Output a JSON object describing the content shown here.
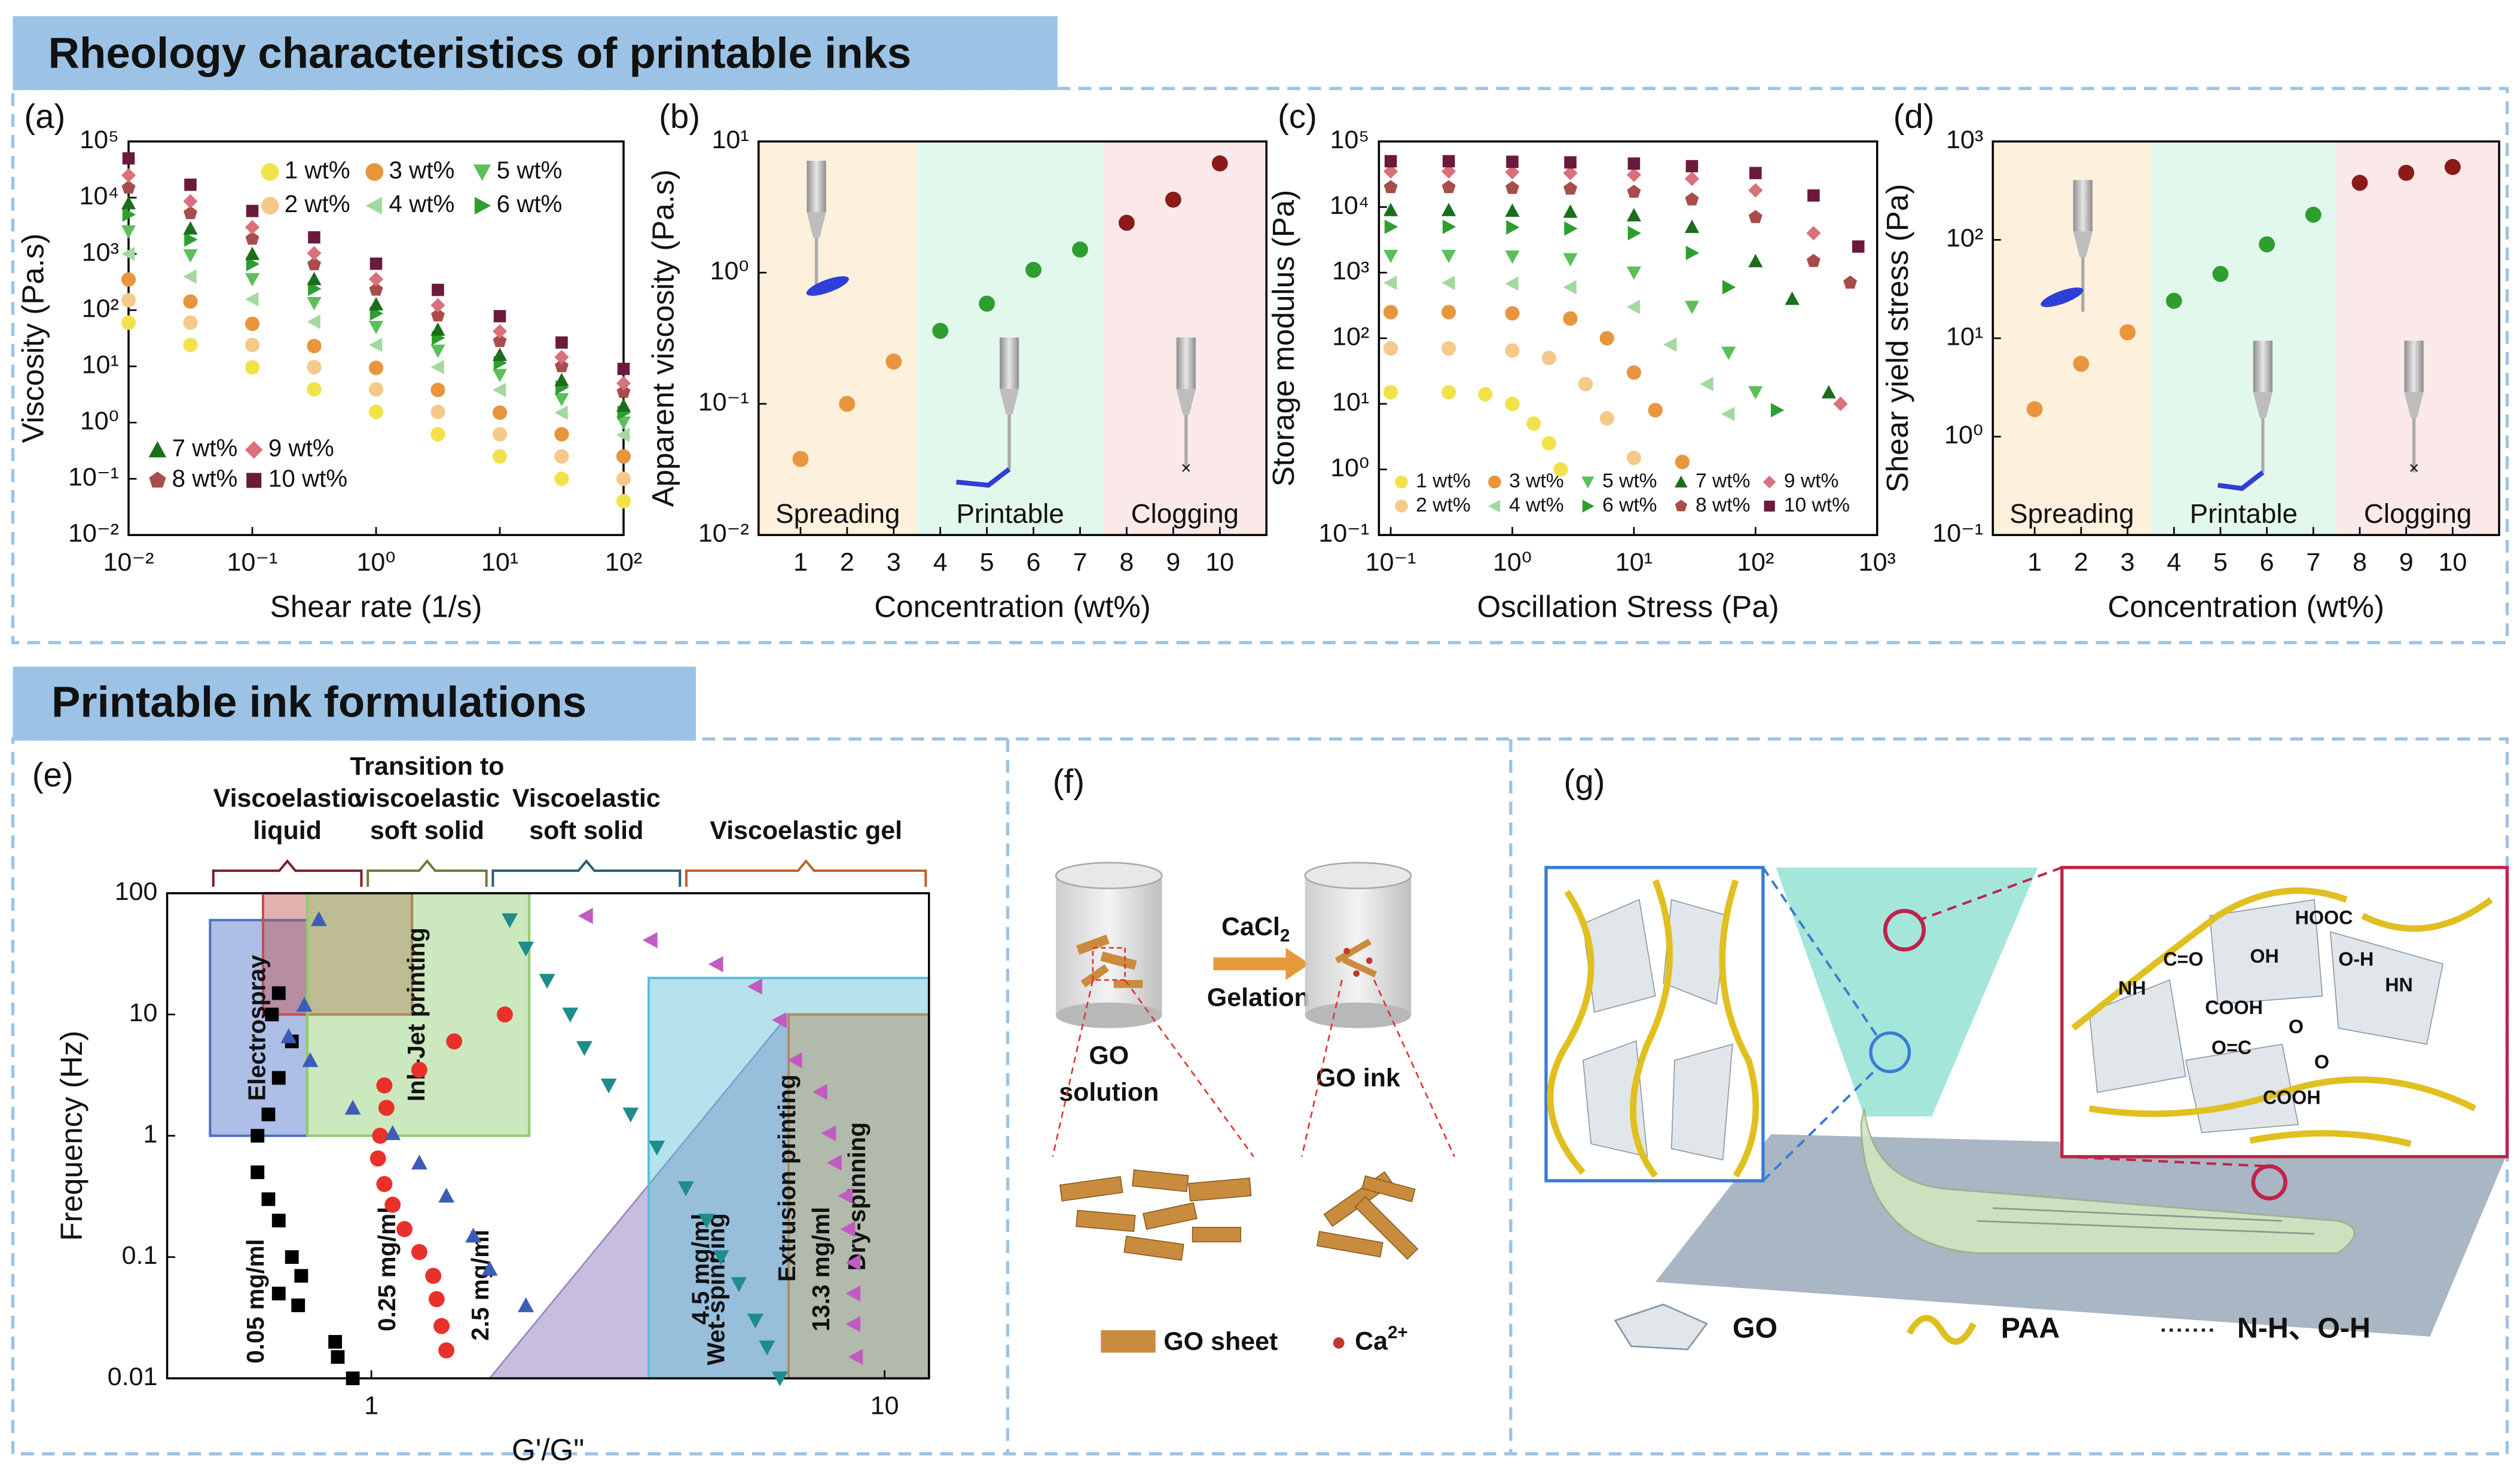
{
  "headers": [
    "Rheology characteristics of printable inks",
    "Printable ink formulations"
  ],
  "chart_data": [
    {
      "type": "scatter",
      "label": "(a)",
      "xlabel": "Shear rate (1/s)",
      "ylabel": "Viscosity (Pa.s)",
      "xlog": true,
      "ylog": true,
      "legend": true,
      "xlim": [
        0.01,
        100
      ],
      "ylim": [
        0.01,
        100000
      ],
      "xticks": [
        {
          "value": 0.01,
          "label": "10⁻²"
        },
        {
          "value": 0.1,
          "label": "10⁻¹"
        },
        {
          "value": 1,
          "label": "10⁰"
        },
        {
          "value": 10,
          "label": "10¹"
        },
        {
          "value": 100,
          "label": "10²"
        }
      ],
      "yticks": [
        {
          "value": 0.01,
          "label": "10⁻²"
        },
        {
          "value": 0.1,
          "label": "10⁻¹"
        },
        {
          "value": 1,
          "label": "10⁰"
        },
        {
          "value": 10,
          "label": "10¹"
        },
        {
          "value": 100,
          "label": "10²"
        },
        {
          "value": 1000,
          "label": "10³"
        },
        {
          "value": 10000,
          "label": "10⁴"
        },
        {
          "value": 100000,
          "label": "10⁵"
        }
      ],
      "x": [
        0.01,
        0.0316,
        0.1,
        0.316,
        1,
        3.16,
        10,
        31.6,
        100
      ],
      "series": [
        {
          "name": "1 wt%",
          "color": "#f2e24a",
          "marker": "circle",
          "values": [
            60,
            24,
            9.6,
            3.9,
            1.55,
            0.62,
            0.25,
            0.1,
            0.04
          ]
        },
        {
          "name": "2 wt%",
          "color": "#f5c98a",
          "marker": "circle",
          "values": [
            150,
            60,
            24,
            9.7,
            3.9,
            1.55,
            0.62,
            0.25,
            0.1
          ]
        },
        {
          "name": "3 wt%",
          "color": "#e8953e",
          "marker": "circle",
          "values": [
            350,
            142,
            57,
            23,
            9.4,
            3.8,
            1.5,
            0.62,
            0.25
          ]
        },
        {
          "name": "4 wt%",
          "color": "#a3d9a0",
          "marker": "tri-left",
          "values": [
            1000,
            395,
            156,
            62,
            24,
            9.7,
            3.8,
            1.5,
            0.6
          ]
        },
        {
          "name": "5 wt%",
          "color": "#5cbf5a",
          "marker": "tri-down",
          "values": [
            2500,
            940,
            353,
            133,
            50,
            19,
            7,
            2.6,
            1
          ]
        },
        {
          "name": "6 wt%",
          "color": "#2e9e2e",
          "marker": "tri-right",
          "values": [
            5000,
            1800,
            660,
            240,
            87,
            32,
            11.5,
            4.2,
            1.5
          ]
        },
        {
          "name": "7 wt%",
          "color": "#1b6e1b",
          "marker": "tri-up",
          "values": [
            8000,
            2840,
            1000,
            357,
            127,
            45,
            16,
            5.7,
            2
          ]
        },
        {
          "name": "8 wt%",
          "color": "#a84c4c",
          "marker": "pentagon",
          "values": [
            15000,
            5270,
            1850,
            650,
            230,
            80,
            28,
            10,
            3.5
          ]
        },
        {
          "name": "9 wt%",
          "color": "#d9707a",
          "marker": "diamond",
          "values": [
            25000,
            8630,
            2980,
            1030,
            355,
            122,
            42,
            14.6,
            5
          ]
        },
        {
          "name": "10 wt%",
          "color": "#6b1a3c",
          "marker": "square",
          "values": [
            50000,
            17000,
            5800,
            1970,
            670,
            229,
            78,
            26.5,
            9
          ]
        }
      ]
    },
    {
      "type": "scatter",
      "label": "(b)",
      "xlabel": "Concentration (wt%)",
      "ylabel": "Apparent viscosity (Pa.s)",
      "xlog": false,
      "ylog": true,
      "xlim": [
        0.1,
        11
      ],
      "ylim": [
        0.01,
        10
      ],
      "xticks": [
        1,
        2,
        3,
        4,
        5,
        6,
        7,
        8,
        9,
        10
      ],
      "yticks": [
        {
          "value": 0.01,
          "label": "10⁻²"
        },
        {
          "value": 0.1,
          "label": "10⁻¹"
        },
        {
          "value": 1,
          "label": "10⁰"
        },
        {
          "value": 10,
          "label": "10¹"
        }
      ],
      "regions": [
        {
          "label": "Spreading",
          "x0": 0.1,
          "x1": 3.5,
          "color": "#fdf0dc"
        },
        {
          "label": "Printable",
          "x0": 3.5,
          "x1": 7.5,
          "color": "#e3f8ec"
        },
        {
          "label": "Clogging",
          "x0": 7.5,
          "x1": 11,
          "color": "#fbe8e8"
        }
      ],
      "x": [
        1,
        2,
        3,
        4,
        5,
        6,
        7,
        8,
        9,
        10
      ],
      "values": [
        0.038,
        0.1,
        0.21,
        0.36,
        0.58,
        1.05,
        1.5,
        2.4,
        3.6,
        6.8
      ],
      "point_colors": [
        "#e8953e",
        "#e8953e",
        "#e8953e",
        "#2e9e2e",
        "#2e9e2e",
        "#2e9e2e",
        "#2e9e2e",
        "#8b1a1a",
        "#8b1a1a",
        "#8b1a1a"
      ]
    },
    {
      "type": "scatter",
      "label": "(c)",
      "xlabel": "Oscillation Stress (Pa)",
      "ylabel": "Storage modulus (Pa)",
      "xlog": true,
      "ylog": true,
      "legend": true,
      "xlim": [
        0.08,
        1000
      ],
      "ylim": [
        0.1,
        100000
      ],
      "xticks": [
        {
          "value": 0.1,
          "label": "10⁻¹"
        },
        {
          "value": 1,
          "label": "10⁰"
        },
        {
          "value": 10,
          "label": "10¹"
        },
        {
          "value": 100,
          "label": "10²"
        },
        {
          "value": 1000,
          "label": "10³"
        }
      ],
      "yticks": [
        {
          "value": 0.1,
          "label": "10⁻¹"
        },
        {
          "value": 1,
          "label": "10⁰"
        },
        {
          "value": 10,
          "label": "10¹"
        },
        {
          "value": 100,
          "label": "10²"
        },
        {
          "value": 1000,
          "label": "10³"
        },
        {
          "value": 10000,
          "label": "10⁴"
        },
        {
          "value": 100000,
          "label": "10⁵"
        }
      ],
      "series": [
        {
          "name": "1 wt%",
          "color": "#f2e24a",
          "marker": "circle",
          "x": [
            0.1,
            0.3,
            0.6,
            1,
            1.5,
            2,
            2.5
          ],
          "values": [
            15,
            15,
            14,
            10,
            5,
            2.5,
            1
          ]
        },
        {
          "name": "2 wt%",
          "color": "#f5c98a",
          "marker": "circle",
          "x": [
            0.1,
            0.3,
            1,
            2,
            4,
            6,
            10
          ],
          "values": [
            70,
            70,
            65,
            50,
            20,
            6,
            1.5
          ]
        },
        {
          "name": "3 wt%",
          "color": "#e8953e",
          "marker": "circle",
          "x": [
            0.1,
            0.3,
            1,
            3,
            6,
            10,
            15,
            25
          ],
          "values": [
            250,
            250,
            240,
            200,
            100,
            30,
            8,
            1.3
          ]
        },
        {
          "name": "4 wt%",
          "color": "#a3d9a0",
          "marker": "tri-left",
          "x": [
            0.1,
            0.3,
            1,
            3,
            10,
            20,
            40,
            60
          ],
          "values": [
            700,
            700,
            680,
            600,
            300,
            80,
            20,
            7
          ]
        },
        {
          "name": "5 wt%",
          "color": "#5cbf5a",
          "marker": "tri-down",
          "x": [
            0.1,
            0.3,
            1,
            3,
            10,
            30,
            60,
            100
          ],
          "values": [
            1800,
            1800,
            1750,
            1600,
            1000,
            300,
            60,
            15
          ]
        },
        {
          "name": "6 wt%",
          "color": "#2e9e2e",
          "marker": "tri-right",
          "x": [
            0.1,
            0.3,
            1,
            3,
            10,
            30,
            60,
            150
          ],
          "values": [
            5000,
            5000,
            4900,
            4700,
            4000,
            2000,
            600,
            8
          ]
        },
        {
          "name": "7 wt%",
          "color": "#1b6e1b",
          "marker": "tri-up",
          "x": [
            0.1,
            0.3,
            1,
            3,
            10,
            30,
            100,
            200,
            400
          ],
          "values": [
            9000,
            9000,
            8800,
            8500,
            7500,
            5000,
            1500,
            400,
            15
          ]
        },
        {
          "name": "8 wt%",
          "color": "#a84c4c",
          "marker": "pentagon",
          "x": [
            0.1,
            0.3,
            1,
            3,
            10,
            30,
            100,
            300,
            600
          ],
          "values": [
            20000,
            20000,
            19500,
            19000,
            17000,
            13000,
            7000,
            1500,
            700
          ]
        },
        {
          "name": "9 wt%",
          "color": "#d9707a",
          "marker": "diamond",
          "x": [
            0.1,
            0.3,
            1,
            3,
            10,
            30,
            100,
            300,
            500
          ],
          "values": [
            35000,
            35000,
            34000,
            33000,
            31000,
            27000,
            18000,
            4000,
            10
          ]
        },
        {
          "name": "10 wt%",
          "color": "#6b1a3c",
          "marker": "square",
          "x": [
            0.1,
            0.3,
            1,
            3,
            10,
            30,
            100,
            300,
            700
          ],
          "values": [
            50000,
            50000,
            49000,
            48000,
            46000,
            42000,
            33000,
            15000,
            2500
          ]
        }
      ]
    },
    {
      "type": "scatter",
      "label": "(d)",
      "xlabel": "Concentration (wt%)",
      "ylabel": "Shear yield stress (Pa)",
      "xlog": false,
      "ylog": true,
      "xlim": [
        0.1,
        11
      ],
      "ylim": [
        0.1,
        1000
      ],
      "xticks": [
        1,
        2,
        3,
        4,
        5,
        6,
        7,
        8,
        9,
        10
      ],
      "yticks": [
        {
          "value": 0.1,
          "label": "10⁻¹"
        },
        {
          "value": 1,
          "label": "10⁰"
        },
        {
          "value": 10,
          "label": "10¹"
        },
        {
          "value": 100,
          "label": "10²"
        },
        {
          "value": 1000,
          "label": "10³"
        }
      ],
      "regions": [
        {
          "label": "Spreading",
          "x0": 0.1,
          "x1": 3.5,
          "color": "#fdf0dc"
        },
        {
          "label": "Printable",
          "x0": 3.5,
          "x1": 7.5,
          "color": "#e3f8ec"
        },
        {
          "label": "Clogging",
          "x0": 7.5,
          "x1": 11,
          "color": "#fbe8e8"
        }
      ],
      "x": [
        1,
        2,
        3,
        4,
        5,
        6,
        7,
        8,
        9,
        10
      ],
      "values": [
        1.9,
        5.5,
        11.5,
        24,
        45,
        90,
        180,
        380,
        480,
        550
      ],
      "point_colors": [
        "#e8953e",
        "#e8953e",
        "#e8953e",
        "#2e9e2e",
        "#2e9e2e",
        "#2e9e2e",
        "#2e9e2e",
        "#8b1a1a",
        "#8b1a1a",
        "#8b1a1a"
      ]
    },
    {
      "type": "scatter",
      "label": "(e)",
      "xlabel": "G'/G\"",
      "ylabel": "Frequency (Hz)",
      "xlog": true,
      "ylog": true,
      "xlim": [
        0.4,
        12.2
      ],
      "ylim": [
        0.01,
        100
      ],
      "xticks": [
        1,
        10
      ],
      "yticks": [
        0.01,
        0.1,
        1,
        10,
        100
      ],
      "phases": [
        {
          "lines": [
            "Viscoelastic",
            "liquid"
          ],
          "x0": 0.485,
          "x1": 0.97,
          "color": "#7a1f2b"
        },
        {
          "lines": [
            "Transition to",
            "viscoelastic",
            "soft solid"
          ],
          "x0": 0.97,
          "x1": 1.7,
          "color": "#76763a"
        },
        {
          "lines": [
            "Viscoelastic",
            "soft solid"
          ],
          "x0": 1.7,
          "x1": 4.05,
          "color": "#2b5c77"
        },
        {
          "lines": [
            "Viscoelastic gel"
          ],
          "x0": 4.05,
          "x1": 12.2,
          "color": "#c0602a"
        }
      ],
      "regions": [
        {
          "label": "Wet-spinning",
          "points": [
            [
              1.7,
              0.01
            ],
            [
              6.5,
              10
            ],
            [
              6.5,
              0.01
            ]
          ],
          "color": "#9a86c4"
        },
        {
          "label": "Electrospray",
          "x0": 0.485,
          "x1": 0.75,
          "y0": 1,
          "y1": 60,
          "color": "#4a70c8"
        },
        {
          "x0": 0.615,
          "x1": 1.2,
          "y0": 10,
          "y1": 100,
          "color": "#c0504d"
        },
        {
          "label": "Ink-Jet printing",
          "x0": 0.75,
          "x1": 2.03,
          "y0": 1,
          "y1": 100,
          "color": "#8fcc6e"
        },
        {
          "label": "Extrusion printing",
          "x0": 3.47,
          "x1": 12.2,
          "y0": 0.01,
          "y1": 20,
          "color": "#5bbfd8"
        },
        {
          "label": "Dry-spinning",
          "x0": 6.5,
          "x1": 12.2,
          "y0": 0.01,
          "y1": 10,
          "color": "#b08b5a"
        }
      ],
      "series": [
        {
          "name": "0.05 mg/ml",
          "color": "#000000",
          "marker": "square",
          "x": [
            0.66,
            0.64,
            0.7,
            0.66,
            0.63,
            0.6,
            0.6,
            0.63,
            0.66,
            0.7,
            0.73,
            0.66,
            0.72,
            0.85,
            0.86,
            0.92
          ],
          "values": [
            15,
            10,
            6,
            3,
            1.5,
            1,
            0.5,
            0.3,
            0.2,
            0.1,
            0.07,
            0.05,
            0.04,
            0.02,
            0.015,
            0.01
          ]
        },
        {
          "name": "0.25 mg/ml",
          "color": "#e8312a",
          "marker": "circle",
          "x": [
            1.82,
            1.45,
            1.24,
            1.06,
            1.07,
            1.04,
            1.03,
            1.06,
            1.1,
            1.16,
            1.24,
            1.32,
            1.34,
            1.37,
            1.4
          ],
          "values": [
            10,
            6,
            3.5,
            2.6,
            1.7,
            1,
            0.65,
            0.4,
            0.27,
            0.17,
            0.11,
            0.07,
            0.045,
            0.027,
            0.017
          ]
        },
        {
          "name": "2.5 mg/ml",
          "color": "#3d5cb8",
          "marker": "tri-up",
          "x": [
            0.79,
            0.74,
            0.69,
            0.76,
            0.92,
            1.1,
            1.24,
            1.4,
            1.58,
            1.7,
            2.0
          ],
          "values": [
            61,
            12,
            6.6,
            4.2,
            1.7,
            1.05,
            0.6,
            0.32,
            0.15,
            0.08,
            0.04
          ]
        },
        {
          "name": "4.5 mg/ml",
          "color": "#1f8c8c",
          "marker": "tri-down",
          "x": [
            1.86,
            2.0,
            2.2,
            2.44,
            2.6,
            2.9,
            3.2,
            3.6,
            4.1,
            4.5,
            4.8,
            5.2,
            5.6,
            5.9,
            6.25
          ],
          "values": [
            60,
            35,
            19,
            10,
            5.3,
            2.6,
            1.5,
            0.8,
            0.37,
            0.2,
            0.1,
            0.06,
            0.03,
            0.018,
            0.01
          ]
        },
        {
          "name": "13.3 mg/ml",
          "color": "#c05cc0",
          "marker": "tri-left",
          "x": [
            2.62,
            3.5,
            4.7,
            5.6,
            6.25,
            6.7,
            7.5,
            7.8,
            8.0,
            8.4,
            8.5,
            8.7,
            8.7,
            8.7,
            8.8
          ],
          "values": [
            65,
            41,
            26,
            17,
            9,
            4.2,
            2.3,
            1.05,
            0.6,
            0.32,
            0.17,
            0.09,
            0.05,
            0.028,
            0.015
          ]
        }
      ]
    }
  ],
  "diagrams": {
    "f": {
      "label": "(f)",
      "reagent": "CaCl",
      "reagent_subscript": "2",
      "process": "Gelation",
      "before": [
        "GO",
        "solution"
      ],
      "after": "GO ink",
      "legend": {
        "sheet": "GO sheet",
        "ion": "Ca",
        "ion_charge": "2+"
      }
    },
    "g": {
      "label": "(g)",
      "legend": [
        "GO",
        "PAA",
        "N-H、O-H"
      ],
      "bonds": [
        "NH",
        "C=O",
        "COOH",
        "OH",
        "HOOC",
        "O-H",
        "HN",
        "O=C",
        "O",
        "COOH",
        "O"
      ]
    }
  }
}
